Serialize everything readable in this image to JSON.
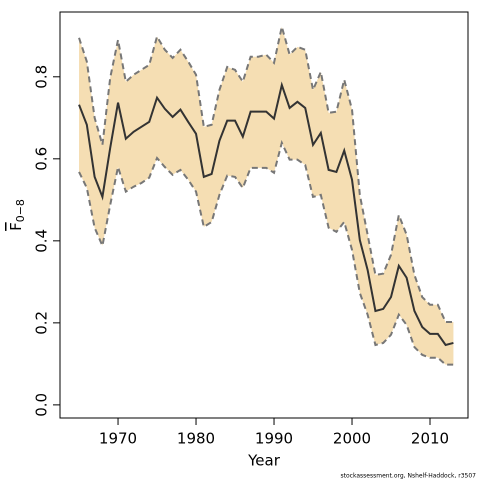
{
  "chart_data": {
    "type": "line",
    "xlabel": "Year",
    "ylabel": {
      "symbol": "F",
      "subscript": "0−8"
    },
    "credit": "stockassessment.org, Nshelf-Haddock, r3507",
    "x": [
      1965,
      1966,
      1967,
      1968,
      1969,
      1970,
      1971,
      1972,
      1973,
      1974,
      1975,
      1976,
      1977,
      1978,
      1979,
      1980,
      1981,
      1982,
      1983,
      1984,
      1985,
      1986,
      1987,
      1988,
      1989,
      1990,
      1991,
      1992,
      1993,
      1994,
      1995,
      1996,
      1997,
      1998,
      1999,
      2000,
      2001,
      2002,
      2003,
      2004,
      2005,
      2006,
      2007,
      2008,
      2009,
      2010,
      2011,
      2012,
      2013
    ],
    "values": [
      0.732,
      0.683,
      0.556,
      0.507,
      0.627,
      0.737,
      0.649,
      0.666,
      0.678,
      0.69,
      0.749,
      0.722,
      0.702,
      0.72,
      0.69,
      0.661,
      0.556,
      0.563,
      0.644,
      0.693,
      0.693,
      0.654,
      0.715,
      0.715,
      0.715,
      0.698,
      0.78,
      0.724,
      0.739,
      0.724,
      0.634,
      0.663,
      0.573,
      0.568,
      0.62,
      0.549,
      0.402,
      0.329,
      0.229,
      0.234,
      0.263,
      0.339,
      0.31,
      0.229,
      0.19,
      0.173,
      0.173,
      0.146,
      0.151
    ],
    "upper": [
      0.895,
      0.837,
      0.7,
      0.634,
      0.798,
      0.89,
      0.788,
      0.805,
      0.817,
      0.829,
      0.898,
      0.866,
      0.846,
      0.866,
      0.837,
      0.805,
      0.678,
      0.683,
      0.768,
      0.824,
      0.817,
      0.788,
      0.849,
      0.849,
      0.854,
      0.834,
      0.922,
      0.854,
      0.873,
      0.866,
      0.768,
      0.812,
      0.712,
      0.715,
      0.793,
      0.72,
      0.512,
      0.415,
      0.317,
      0.32,
      0.366,
      0.463,
      0.415,
      0.317,
      0.263,
      0.244,
      0.244,
      0.202,
      0.202
    ],
    "lower": [
      0.568,
      0.529,
      0.432,
      0.388,
      0.488,
      0.58,
      0.52,
      0.532,
      0.541,
      0.554,
      0.602,
      0.58,
      0.561,
      0.573,
      0.549,
      0.52,
      0.434,
      0.446,
      0.512,
      0.559,
      0.556,
      0.529,
      0.578,
      0.578,
      0.578,
      0.566,
      0.639,
      0.598,
      0.598,
      0.585,
      0.507,
      0.512,
      0.432,
      0.422,
      0.446,
      0.378,
      0.273,
      0.22,
      0.146,
      0.151,
      0.171,
      0.22,
      0.195,
      0.141,
      0.122,
      0.115,
      0.115,
      0.098,
      0.098
    ],
    "color": "#333333",
    "band_color": "#f5deb3",
    "bound_color": "#777777",
    "xlim": [
      1962.56,
      2014.87
    ],
    "xticks": [
      1970,
      1980,
      1990,
      2000,
      2010
    ],
    "ylim": [
      -0.032,
      0.958
    ],
    "yticks": [
      {
        "value": 0,
        "label": "0.0"
      },
      0.2,
      0.4,
      0.6,
      0.8
    ]
  }
}
